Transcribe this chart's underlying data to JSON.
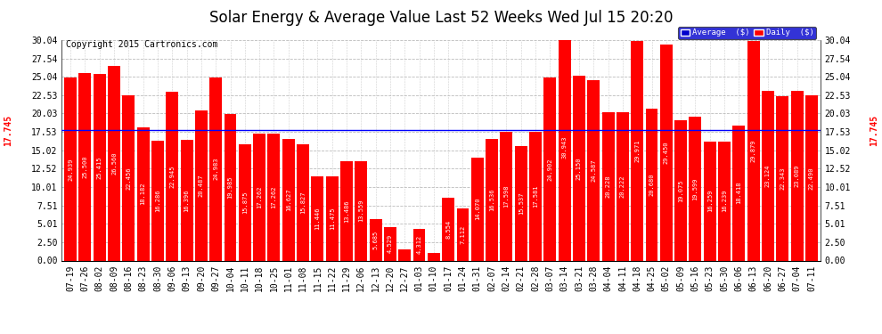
{
  "title": "Solar Energy & Average Value Last 52 Weeks Wed Jul 15 20:20",
  "copyright": "Copyright 2015 Cartronics.com",
  "bar_color": "#ff0000",
  "average_line_value": 17.745,
  "average_line_color": "#0000ff",
  "background_color": "#ffffff",
  "plot_bg_color": "#ffffff",
  "ylim": [
    0,
    30.04
  ],
  "yticks": [
    0.0,
    2.5,
    5.01,
    7.51,
    10.01,
    12.52,
    15.02,
    17.53,
    20.03,
    22.53,
    25.04,
    27.54,
    30.04
  ],
  "grid_color": "#bbbbbb",
  "legend_avg_color": "#0000cc",
  "legend_daily_color": "#ff0000",
  "labels": [
    "07-19",
    "07-26",
    "08-02",
    "08-09",
    "08-16",
    "08-23",
    "08-30",
    "09-06",
    "09-13",
    "09-20",
    "09-27",
    "10-04",
    "10-11",
    "10-18",
    "10-25",
    "11-01",
    "11-08",
    "11-15",
    "11-22",
    "11-29",
    "12-06",
    "12-13",
    "12-20",
    "12-27",
    "01-03",
    "01-10",
    "01-17",
    "01-24",
    "01-31",
    "02-07",
    "02-14",
    "02-21",
    "02-28",
    "03-07",
    "03-14",
    "03-21",
    "03-28",
    "04-04",
    "04-11",
    "04-18",
    "04-25",
    "05-02",
    "05-09",
    "05-16",
    "05-23",
    "05-30",
    "06-06",
    "06-13",
    "06-20",
    "06-27",
    "07-04",
    "07-11"
  ],
  "values": [
    24.939,
    25.5,
    25.415,
    26.56,
    22.456,
    18.182,
    16.286,
    22.945,
    16.396,
    20.487,
    24.983,
    19.985,
    15.875,
    17.262,
    17.262,
    16.627,
    15.827,
    11.446,
    11.475,
    13.486,
    13.559,
    5.685,
    4.529,
    1.529,
    4.312,
    1.006,
    8.554,
    7.112,
    14.07,
    16.536,
    17.598,
    15.537,
    17.581,
    24.902,
    30.943,
    25.15,
    24.587,
    20.228,
    20.222,
    29.971,
    20.68,
    29.45,
    19.075,
    19.599,
    16.259,
    16.239,
    18.418,
    29.879,
    23.124,
    22.343,
    23.089,
    22.49
  ],
  "bar_value_fontsize": 5.0,
  "bar_value_color": "#ffffff",
  "title_fontsize": 12,
  "copyright_fontsize": 7,
  "tick_fontsize": 7,
  "avg_label": "17.745",
  "avg_label_color": "#ff0000"
}
